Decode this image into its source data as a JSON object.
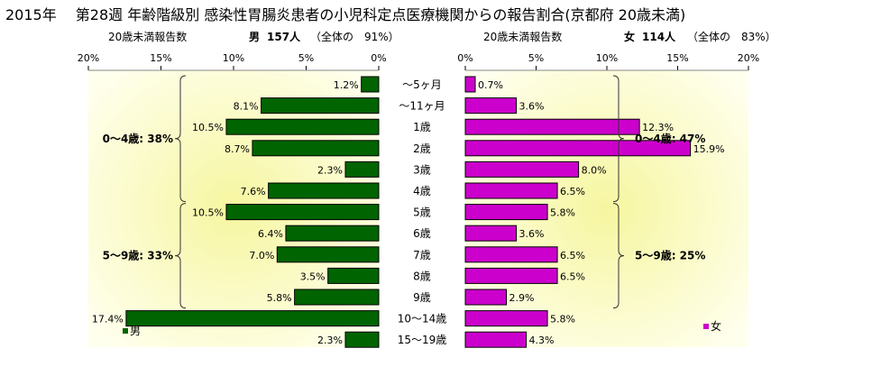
{
  "header": {
    "title": "2015年　 第28週 年齢階級別 感染性胃腸炎患者の小児科定点医療機関からの報告割合(京都府 20歳未満)"
  },
  "left_subtitle": {
    "label": "20歳未満報告数",
    "sex": "男",
    "count": "157人",
    "ratio": "（全体の　91%）"
  },
  "right_subtitle": {
    "label": "20歳未満報告数",
    "sex": "女",
    "count": "114人",
    "ratio": "（全体の　83%）"
  },
  "colors": {
    "male": "#006400",
    "female": "#cc00cc",
    "panel_bg": "#ffffe8",
    "panel_center": "#f6f6a0",
    "tick_line": "#888888"
  },
  "chart_data": [
    {
      "type": "bar",
      "orientation": "horizontal",
      "direction": "right-to-left",
      "categories": [
        "～5ヶ月",
        "～11ヶ月",
        "1歳",
        "2歳",
        "3歳",
        "4歳",
        "5歳",
        "6歳",
        "7歳",
        "8歳",
        "9歳",
        "10～14歳",
        "15～19歳"
      ],
      "series": [
        {
          "name": "男",
          "values": [
            1.2,
            8.1,
            10.5,
            8.7,
            2.3,
            7.6,
            10.5,
            6.4,
            7.0,
            3.5,
            5.8,
            17.4,
            2.3
          ]
        }
      ],
      "value_labels": [
        "1.2%",
        "8.1%",
        "10.5%",
        "8.7%",
        "2.3%",
        "7.6%",
        "10.5%",
        "6.4%",
        "7.0%",
        "3.5%",
        "5.8%",
        "17.4%",
        "2.3%"
      ],
      "xlim": [
        0,
        20
      ],
      "xticks": [
        "20%",
        "15%",
        "10%",
        "5%",
        "0%"
      ],
      "groups": [
        {
          "label": "0～4歳: 38%",
          "from": 0,
          "to": 5
        },
        {
          "label": "5～9歳: 33%",
          "from": 6,
          "to": 10
        }
      ],
      "legend": {
        "label": "男",
        "position": "bottom-left"
      }
    },
    {
      "type": "bar",
      "orientation": "horizontal",
      "direction": "left-to-right",
      "categories": [
        "～5ヶ月",
        "～11ヶ月",
        "1歳",
        "2歳",
        "3歳",
        "4歳",
        "5歳",
        "6歳",
        "7歳",
        "8歳",
        "9歳",
        "10～14歳",
        "15～19歳"
      ],
      "series": [
        {
          "name": "女",
          "values": [
            0.7,
            3.6,
            12.3,
            15.9,
            8.0,
            6.5,
            5.8,
            3.6,
            6.5,
            6.5,
            2.9,
            5.8,
            4.3
          ]
        }
      ],
      "value_labels": [
        "0.7%",
        "3.6%",
        "12.3%",
        "15.9%",
        "8.0%",
        "6.5%",
        "5.8%",
        "3.6%",
        "6.5%",
        "6.5%",
        "2.9%",
        "5.8%",
        "4.3%"
      ],
      "xlim": [
        0,
        20
      ],
      "xticks": [
        "0%",
        "5%",
        "10%",
        "15%",
        "20%"
      ],
      "groups": [
        {
          "label": "0～4歳: 47%",
          "from": 0,
          "to": 5
        },
        {
          "label": "5～9歳: 25%",
          "from": 6,
          "to": 10
        }
      ],
      "legend": {
        "label": "女",
        "position": "bottom-right"
      }
    }
  ]
}
